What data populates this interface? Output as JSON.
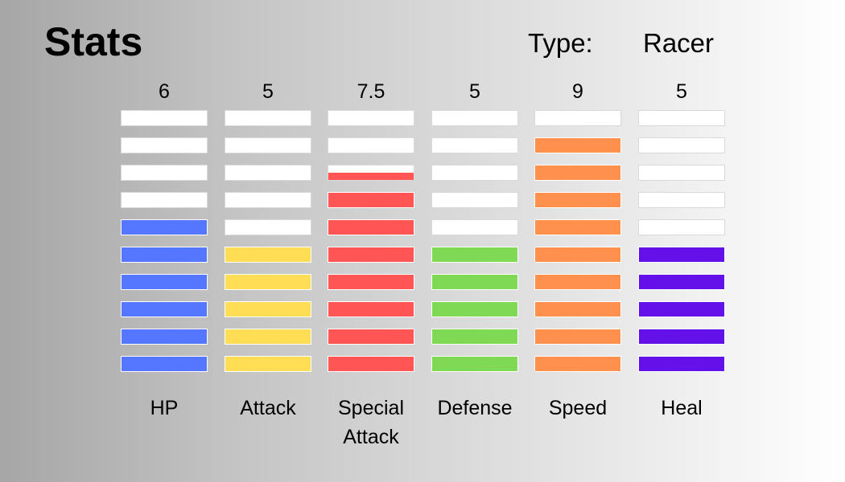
{
  "header": {
    "title": "Stats",
    "type_label": "Type:",
    "type_value": "Racer"
  },
  "max_segments": 10,
  "stats": [
    {
      "label": "HP",
      "value": "6",
      "level": 6,
      "color": "#5577ff"
    },
    {
      "label": "Attack",
      "value": "5",
      "level": 5,
      "color": "#ffdd55"
    },
    {
      "label": "Special Attack",
      "value": "7.5",
      "level": 7.5,
      "color": "#ff5555"
    },
    {
      "label": "Defense",
      "value": "5",
      "level": 5,
      "color": "#80d955"
    },
    {
      "label": "Speed",
      "value": "9",
      "level": 9,
      "color": "#ff904d"
    },
    {
      "label": "Heal",
      "value": "5",
      "level": 5,
      "color": "#6311e8"
    }
  ]
}
